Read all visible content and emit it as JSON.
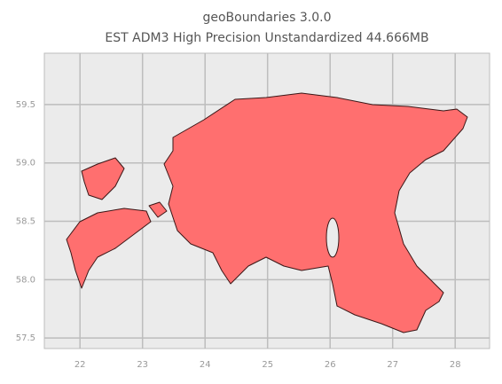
{
  "chart_data": {
    "type": "map",
    "title": "geoBoundaries 3.0.0",
    "subtitle": "EST ADM3 High Precision Unstandardized 44.666MB",
    "xlim": [
      21.43,
      28.55
    ],
    "ylim": [
      57.41,
      59.94
    ],
    "xticks": [
      22,
      23,
      24,
      25,
      26,
      27,
      28
    ],
    "yticks": [
      57.5,
      {
        "value": 58,
        "label": "58.0"
      },
      58.5,
      {
        "value": 59,
        "label": "59.0"
      },
      59.5
    ],
    "grid": true,
    "color": "#ff6f6f"
  }
}
